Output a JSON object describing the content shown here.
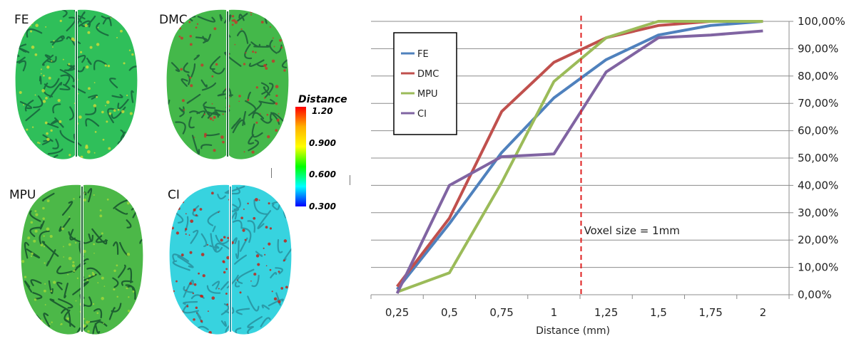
{
  "panels": {
    "fe": {
      "label": "FE",
      "fill": "#2fbf5a",
      "pattern": "#1a6f40",
      "spots": "#c8d93a"
    },
    "dmc": {
      "label": "DMC",
      "fill": "#44b84a",
      "pattern": "#226a3a",
      "spots": "#c0392b"
    },
    "mpu": {
      "label": "MPU",
      "fill": "#4cb848",
      "pattern": "#1d6030",
      "spots": "#9fd63a"
    },
    "ci": {
      "label": "CI",
      "fill": "#37d3df",
      "pattern": "#2a9aa8",
      "spots": "#c0241b"
    }
  },
  "colorbar": {
    "title": "Distance",
    "ticks": [
      "1.20",
      "0.900",
      "0.600",
      "0.300"
    ],
    "colors": [
      "#ff0000",
      "#ffb000",
      "#ffff00",
      "#00ff00",
      "#00ffff",
      "#0000ff"
    ]
  },
  "chart_data": {
    "type": "line",
    "categories": [
      "0,25",
      "0,5",
      "0,75",
      "1",
      "1,25",
      "1,5",
      "1,75",
      "2"
    ],
    "x": [
      0.25,
      0.5,
      0.75,
      1,
      1.25,
      1.5,
      1.75,
      2
    ],
    "xlabel": "Distance (mm)",
    "ylabel": "",
    "ylim": [
      0,
      100
    ],
    "y_ticks": [
      "0,00%",
      "10,00%",
      "20,00%",
      "30,00%",
      "40,00%",
      "50,00%",
      "60,00%",
      "70,00%",
      "80,00%",
      "90,00%",
      "100,00%"
    ],
    "y_axis_side": "right",
    "grid": true,
    "legend_position": "top-left",
    "series": [
      {
        "name": "FE",
        "color": "#4f81bd",
        "values": [
          2,
          26,
          52,
          72,
          86,
          95,
          98.5,
          100
        ]
      },
      {
        "name": "DMC",
        "color": "#c0504d",
        "values": [
          3,
          28,
          67,
          85,
          94,
          98.5,
          100,
          100
        ]
      },
      {
        "name": "MPU",
        "color": "#9bbb59",
        "values": [
          1,
          8,
          41,
          78,
          94,
          100,
          100,
          100
        ]
      },
      {
        "name": "CI",
        "color": "#8064a2",
        "values": [
          0.5,
          40,
          50.5,
          51.5,
          81.5,
          94,
          95,
          96.5
        ]
      }
    ],
    "annotation": {
      "text": "Voxel size = 1mm",
      "x": 1.13,
      "color": "#e02020"
    }
  }
}
